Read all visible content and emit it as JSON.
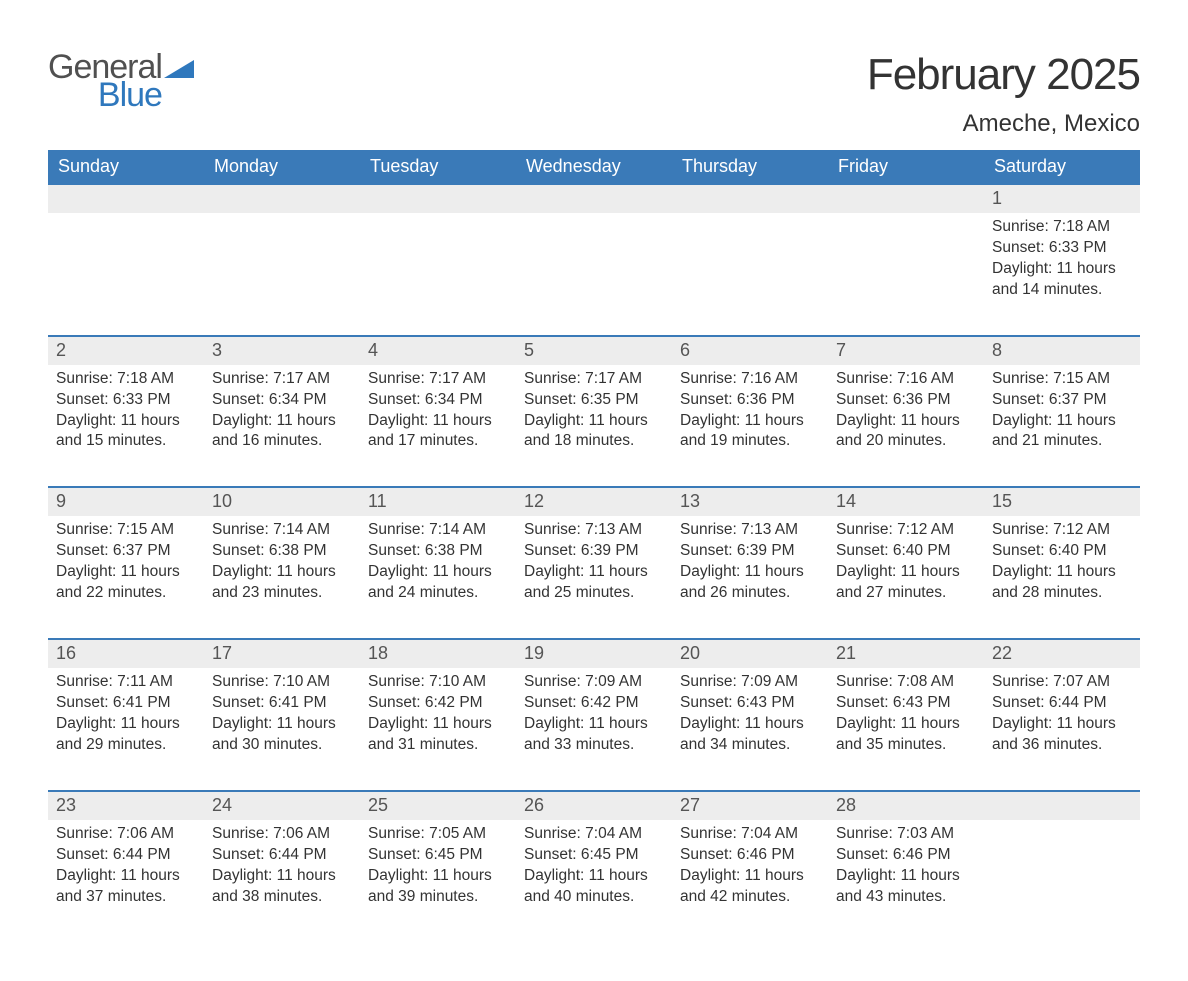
{
  "brand": {
    "word1": "General",
    "word2": "Blue",
    "word1_color": "#505050",
    "word2_color": "#2f78bd",
    "triangle_color": "#2f78bd"
  },
  "header": {
    "month_title": "February 2025",
    "location": "Ameche, Mexico"
  },
  "style": {
    "header_bg": "#3a7ab8",
    "header_text": "#ffffff",
    "daynum_bg": "#ededed",
    "week_border": "#3a7ab8",
    "body_text": "#333333",
    "page_bg": "#ffffff",
    "dow_fontsize": 18,
    "cell_fontsize": 15.5,
    "title_fontsize": 44,
    "location_fontsize": 24
  },
  "days_of_week": [
    "Sunday",
    "Monday",
    "Tuesday",
    "Wednesday",
    "Thursday",
    "Friday",
    "Saturday"
  ],
  "weeks": [
    {
      "nums": [
        "",
        "",
        "",
        "",
        "",
        "",
        "1"
      ],
      "cells": [
        null,
        null,
        null,
        null,
        null,
        null,
        {
          "sunrise": "Sunrise: 7:18 AM",
          "sunset": "Sunset: 6:33 PM",
          "daylight": "Daylight: 11 hours and 14 minutes."
        }
      ]
    },
    {
      "nums": [
        "2",
        "3",
        "4",
        "5",
        "6",
        "7",
        "8"
      ],
      "cells": [
        {
          "sunrise": "Sunrise: 7:18 AM",
          "sunset": "Sunset: 6:33 PM",
          "daylight": "Daylight: 11 hours and 15 minutes."
        },
        {
          "sunrise": "Sunrise: 7:17 AM",
          "sunset": "Sunset: 6:34 PM",
          "daylight": "Daylight: 11 hours and 16 minutes."
        },
        {
          "sunrise": "Sunrise: 7:17 AM",
          "sunset": "Sunset: 6:34 PM",
          "daylight": "Daylight: 11 hours and 17 minutes."
        },
        {
          "sunrise": "Sunrise: 7:17 AM",
          "sunset": "Sunset: 6:35 PM",
          "daylight": "Daylight: 11 hours and 18 minutes."
        },
        {
          "sunrise": "Sunrise: 7:16 AM",
          "sunset": "Sunset: 6:36 PM",
          "daylight": "Daylight: 11 hours and 19 minutes."
        },
        {
          "sunrise": "Sunrise: 7:16 AM",
          "sunset": "Sunset: 6:36 PM",
          "daylight": "Daylight: 11 hours and 20 minutes."
        },
        {
          "sunrise": "Sunrise: 7:15 AM",
          "sunset": "Sunset: 6:37 PM",
          "daylight": "Daylight: 11 hours and 21 minutes."
        }
      ]
    },
    {
      "nums": [
        "9",
        "10",
        "11",
        "12",
        "13",
        "14",
        "15"
      ],
      "cells": [
        {
          "sunrise": "Sunrise: 7:15 AM",
          "sunset": "Sunset: 6:37 PM",
          "daylight": "Daylight: 11 hours and 22 minutes."
        },
        {
          "sunrise": "Sunrise: 7:14 AM",
          "sunset": "Sunset: 6:38 PM",
          "daylight": "Daylight: 11 hours and 23 minutes."
        },
        {
          "sunrise": "Sunrise: 7:14 AM",
          "sunset": "Sunset: 6:38 PM",
          "daylight": "Daylight: 11 hours and 24 minutes."
        },
        {
          "sunrise": "Sunrise: 7:13 AM",
          "sunset": "Sunset: 6:39 PM",
          "daylight": "Daylight: 11 hours and 25 minutes."
        },
        {
          "sunrise": "Sunrise: 7:13 AM",
          "sunset": "Sunset: 6:39 PM",
          "daylight": "Daylight: 11 hours and 26 minutes."
        },
        {
          "sunrise": "Sunrise: 7:12 AM",
          "sunset": "Sunset: 6:40 PM",
          "daylight": "Daylight: 11 hours and 27 minutes."
        },
        {
          "sunrise": "Sunrise: 7:12 AM",
          "sunset": "Sunset: 6:40 PM",
          "daylight": "Daylight: 11 hours and 28 minutes."
        }
      ]
    },
    {
      "nums": [
        "16",
        "17",
        "18",
        "19",
        "20",
        "21",
        "22"
      ],
      "cells": [
        {
          "sunrise": "Sunrise: 7:11 AM",
          "sunset": "Sunset: 6:41 PM",
          "daylight": "Daylight: 11 hours and 29 minutes."
        },
        {
          "sunrise": "Sunrise: 7:10 AM",
          "sunset": "Sunset: 6:41 PM",
          "daylight": "Daylight: 11 hours and 30 minutes."
        },
        {
          "sunrise": "Sunrise: 7:10 AM",
          "sunset": "Sunset: 6:42 PM",
          "daylight": "Daylight: 11 hours and 31 minutes."
        },
        {
          "sunrise": "Sunrise: 7:09 AM",
          "sunset": "Sunset: 6:42 PM",
          "daylight": "Daylight: 11 hours and 33 minutes."
        },
        {
          "sunrise": "Sunrise: 7:09 AM",
          "sunset": "Sunset: 6:43 PM",
          "daylight": "Daylight: 11 hours and 34 minutes."
        },
        {
          "sunrise": "Sunrise: 7:08 AM",
          "sunset": "Sunset: 6:43 PM",
          "daylight": "Daylight: 11 hours and 35 minutes."
        },
        {
          "sunrise": "Sunrise: 7:07 AM",
          "sunset": "Sunset: 6:44 PM",
          "daylight": "Daylight: 11 hours and 36 minutes."
        }
      ]
    },
    {
      "nums": [
        "23",
        "24",
        "25",
        "26",
        "27",
        "28",
        ""
      ],
      "cells": [
        {
          "sunrise": "Sunrise: 7:06 AM",
          "sunset": "Sunset: 6:44 PM",
          "daylight": "Daylight: 11 hours and 37 minutes."
        },
        {
          "sunrise": "Sunrise: 7:06 AM",
          "sunset": "Sunset: 6:44 PM",
          "daylight": "Daylight: 11 hours and 38 minutes."
        },
        {
          "sunrise": "Sunrise: 7:05 AM",
          "sunset": "Sunset: 6:45 PM",
          "daylight": "Daylight: 11 hours and 39 minutes."
        },
        {
          "sunrise": "Sunrise: 7:04 AM",
          "sunset": "Sunset: 6:45 PM",
          "daylight": "Daylight: 11 hours and 40 minutes."
        },
        {
          "sunrise": "Sunrise: 7:04 AM",
          "sunset": "Sunset: 6:46 PM",
          "daylight": "Daylight: 11 hours and 42 minutes."
        },
        {
          "sunrise": "Sunrise: 7:03 AM",
          "sunset": "Sunset: 6:46 PM",
          "daylight": "Daylight: 11 hours and 43 minutes."
        },
        null
      ]
    }
  ]
}
